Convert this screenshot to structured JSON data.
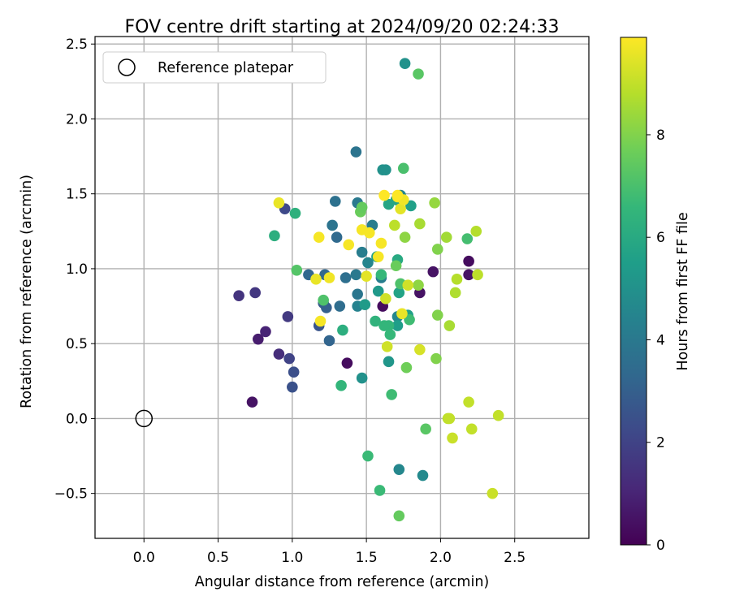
{
  "chart_data": {
    "type": "scatter",
    "title": "FOV centre drift starting at 2024/09/20 02:24:33",
    "xlabel": "Angular distance from reference (arcmin)",
    "ylabel": "Rotation from reference (arcmin)",
    "xlim": [
      -0.33,
      3.0
    ],
    "ylim": [
      -0.8,
      2.55
    ],
    "xticks": [
      0.0,
      0.5,
      1.0,
      1.5,
      2.0,
      2.5
    ],
    "xtick_labels": [
      "0.0",
      "0.5",
      "1.0",
      "1.5",
      "2.0",
      "2.5"
    ],
    "yticks": [
      -0.5,
      0.0,
      0.5,
      1.0,
      1.5,
      2.0,
      2.5
    ],
    "ytick_labels": [
      "−0.5",
      "0.0",
      "0.5",
      "1.0",
      "1.5",
      "2.0",
      "2.5"
    ],
    "grid": true,
    "legend": {
      "placement": "top-left",
      "label": "Reference platepar"
    },
    "reference_point": {
      "x": 0.0,
      "y": 0.0,
      "marker": "open-circle"
    },
    "colorbar": {
      "label": "Hours from first FF file",
      "colormap": "viridis",
      "range": [
        0,
        9.9
      ],
      "ticks": [
        0,
        2,
        4,
        6,
        8
      ],
      "tick_labels": [
        "0",
        "2",
        "4",
        "6",
        "8"
      ]
    },
    "colormap_stops": [
      "#440154",
      "#482878",
      "#3e4989",
      "#31688e",
      "#26828e",
      "#1f9e89",
      "#35b779",
      "#6ece58",
      "#b5de2b",
      "#fde725"
    ],
    "points": [
      {
        "x": 0.73,
        "y": 0.11,
        "h": 0.5
      },
      {
        "x": 0.77,
        "y": 0.53,
        "h": 0.8
      },
      {
        "x": 0.82,
        "y": 0.58,
        "h": 1.0
      },
      {
        "x": 0.91,
        "y": 0.43,
        "h": 1.3
      },
      {
        "x": 0.64,
        "y": 0.82,
        "h": 1.5
      },
      {
        "x": 0.75,
        "y": 0.84,
        "h": 1.6
      },
      {
        "x": 0.97,
        "y": 0.68,
        "h": 1.7
      },
      {
        "x": 0.98,
        "y": 0.4,
        "h": 2.0
      },
      {
        "x": 1.01,
        "y": 0.31,
        "h": 2.4
      },
      {
        "x": 1.0,
        "y": 0.21,
        "h": 2.5
      },
      {
        "x": 1.37,
        "y": 0.37,
        "h": 0.3
      },
      {
        "x": 1.61,
        "y": 0.75,
        "h": 0.3
      },
      {
        "x": 1.86,
        "y": 0.84,
        "h": 0.5
      },
      {
        "x": 1.95,
        "y": 0.98,
        "h": 0.5
      },
      {
        "x": 2.19,
        "y": 0.96,
        "h": 0.5
      },
      {
        "x": 2.19,
        "y": 1.05,
        "h": 0.3
      },
      {
        "x": 0.95,
        "y": 1.4,
        "h": 2.2
      },
      {
        "x": 1.18,
        "y": 0.62,
        "h": 2.6
      },
      {
        "x": 1.21,
        "y": 0.77,
        "h": 2.8
      },
      {
        "x": 1.23,
        "y": 0.74,
        "h": 3.0
      },
      {
        "x": 1.25,
        "y": 0.52,
        "h": 3.2
      },
      {
        "x": 1.11,
        "y": 0.96,
        "h": 3.3
      },
      {
        "x": 1.22,
        "y": 0.96,
        "h": 3.3
      },
      {
        "x": 1.3,
        "y": 1.21,
        "h": 3.4
      },
      {
        "x": 1.32,
        "y": 0.75,
        "h": 3.5
      },
      {
        "x": 1.36,
        "y": 0.94,
        "h": 3.6
      },
      {
        "x": 1.29,
        "y": 1.45,
        "h": 3.7
      },
      {
        "x": 1.27,
        "y": 1.29,
        "h": 3.8
      },
      {
        "x": 1.43,
        "y": 1.78,
        "h": 3.8
      },
      {
        "x": 1.44,
        "y": 0.83,
        "h": 3.9
      },
      {
        "x": 1.43,
        "y": 0.96,
        "h": 4.0
      },
      {
        "x": 1.44,
        "y": 1.44,
        "h": 4.0
      },
      {
        "x": 1.47,
        "y": 1.11,
        "h": 4.2
      },
      {
        "x": 1.54,
        "y": 1.29,
        "h": 4.2
      },
      {
        "x": 1.6,
        "y": 0.94,
        "h": 4.2
      },
      {
        "x": 1.44,
        "y": 0.75,
        "h": 4.4
      },
      {
        "x": 1.51,
        "y": 1.04,
        "h": 4.5
      },
      {
        "x": 1.71,
        "y": 0.68,
        "h": 4.6
      },
      {
        "x": 1.73,
        "y": 1.49,
        "h": 4.5
      },
      {
        "x": 1.72,
        "y": -0.34,
        "h": 4.6
      },
      {
        "x": 1.88,
        "y": -0.38,
        "h": 4.7
      },
      {
        "x": 1.76,
        "y": 2.37,
        "h": 5.0
      },
      {
        "x": 1.61,
        "y": 1.66,
        "h": 5.0
      },
      {
        "x": 1.63,
        "y": 1.66,
        "h": 5.0
      },
      {
        "x": 1.47,
        "y": 0.27,
        "h": 5.0
      },
      {
        "x": 1.65,
        "y": 0.38,
        "h": 5.2
      },
      {
        "x": 1.58,
        "y": 0.85,
        "h": 5.3
      },
      {
        "x": 1.49,
        "y": 0.76,
        "h": 5.4
      },
      {
        "x": 1.57,
        "y": 1.08,
        "h": 5.5
      },
      {
        "x": 1.71,
        "y": 0.62,
        "h": 5.5
      },
      {
        "x": 1.78,
        "y": 0.69,
        "h": 5.6
      },
      {
        "x": 1.8,
        "y": 1.42,
        "h": 5.6
      },
      {
        "x": 1.72,
        "y": 0.84,
        "h": 5.7
      },
      {
        "x": 1.65,
        "y": 1.43,
        "h": 5.8
      },
      {
        "x": 1.7,
        "y": 1.46,
        "h": 5.8
      },
      {
        "x": 1.71,
        "y": 1.06,
        "h": 6.0
      },
      {
        "x": 0.88,
        "y": 1.22,
        "h": 6.2
      },
      {
        "x": 1.02,
        "y": 1.37,
        "h": 6.3
      },
      {
        "x": 1.34,
        "y": 0.59,
        "h": 6.2
      },
      {
        "x": 1.33,
        "y": 0.22,
        "h": 6.5
      },
      {
        "x": 1.56,
        "y": 0.65,
        "h": 6.4
      },
      {
        "x": 1.65,
        "y": 0.62,
        "h": 6.5
      },
      {
        "x": 1.62,
        "y": 0.62,
        "h": 6.5
      },
      {
        "x": 1.66,
        "y": 0.56,
        "h": 6.6
      },
      {
        "x": 1.6,
        "y": 0.96,
        "h": 6.6
      },
      {
        "x": 1.59,
        "y": -0.48,
        "h": 6.7
      },
      {
        "x": 1.51,
        "y": -0.25,
        "h": 6.7
      },
      {
        "x": 1.67,
        "y": 0.16,
        "h": 6.8
      },
      {
        "x": 1.79,
        "y": 0.66,
        "h": 6.8
      },
      {
        "x": 2.18,
        "y": 1.2,
        "h": 6.9
      },
      {
        "x": 1.75,
        "y": 1.67,
        "h": 7.0
      },
      {
        "x": 1.73,
        "y": 0.9,
        "h": 7.1
      },
      {
        "x": 1.21,
        "y": 0.79,
        "h": 7.1
      },
      {
        "x": 1.03,
        "y": 0.99,
        "h": 7.2
      },
      {
        "x": 1.85,
        "y": 2.3,
        "h": 7.3
      },
      {
        "x": 1.9,
        "y": -0.07,
        "h": 7.3
      },
      {
        "x": 1.72,
        "y": -0.65,
        "h": 7.5
      },
      {
        "x": 1.46,
        "y": 1.38,
        "h": 7.6
      },
      {
        "x": 1.47,
        "y": 1.41,
        "h": 7.5
      },
      {
        "x": 1.7,
        "y": 1.02,
        "h": 7.6
      },
      {
        "x": 1.77,
        "y": 0.34,
        "h": 7.7
      },
      {
        "x": 1.97,
        "y": 0.4,
        "h": 8.0
      },
      {
        "x": 1.98,
        "y": 0.69,
        "h": 8.0
      },
      {
        "x": 1.98,
        "y": 1.13,
        "h": 8.0
      },
      {
        "x": 1.76,
        "y": 1.21,
        "h": 8.2
      },
      {
        "x": 1.85,
        "y": 0.89,
        "h": 8.2
      },
      {
        "x": 1.96,
        "y": 1.44,
        "h": 8.3
      },
      {
        "x": 2.04,
        "y": 1.21,
        "h": 8.5
      },
      {
        "x": 2.06,
        "y": 0.62,
        "h": 8.6
      },
      {
        "x": 1.86,
        "y": 1.3,
        "h": 8.6
      },
      {
        "x": 2.1,
        "y": 0.84,
        "h": 8.7
      },
      {
        "x": 2.11,
        "y": 0.93,
        "h": 8.8
      },
      {
        "x": 2.24,
        "y": 1.25,
        "h": 8.8
      },
      {
        "x": 2.25,
        "y": 0.96,
        "h": 8.9
      },
      {
        "x": 2.19,
        "y": 0.11,
        "h": 9.0
      },
      {
        "x": 2.05,
        "y": 0.0,
        "h": 8.9
      },
      {
        "x": 2.06,
        "y": 0.0,
        "h": 9.0
      },
      {
        "x": 2.21,
        "y": -0.07,
        "h": 9.0
      },
      {
        "x": 2.08,
        "y": -0.13,
        "h": 9.1
      },
      {
        "x": 2.35,
        "y": -0.5,
        "h": 9.1
      },
      {
        "x": 2.39,
        "y": 0.02,
        "h": 9.0
      },
      {
        "x": 1.69,
        "y": 1.29,
        "h": 8.9
      },
      {
        "x": 1.78,
        "y": 0.89,
        "h": 9.2
      },
      {
        "x": 1.63,
        "y": 0.8,
        "h": 9.2
      },
      {
        "x": 1.64,
        "y": 0.48,
        "h": 9.2
      },
      {
        "x": 1.86,
        "y": 0.46,
        "h": 9.3
      },
      {
        "x": 1.5,
        "y": 0.95,
        "h": 9.5
      },
      {
        "x": 1.74,
        "y": 0.7,
        "h": 9.6
      },
      {
        "x": 1.73,
        "y": 1.4,
        "h": 9.5
      },
      {
        "x": 1.16,
        "y": 0.93,
        "h": 9.6
      },
      {
        "x": 1.25,
        "y": 0.94,
        "h": 9.7
      },
      {
        "x": 1.18,
        "y": 1.21,
        "h": 9.8
      },
      {
        "x": 1.38,
        "y": 1.16,
        "h": 9.8
      },
      {
        "x": 1.19,
        "y": 0.65,
        "h": 9.8
      },
      {
        "x": 0.91,
        "y": 1.44,
        "h": 9.6
      },
      {
        "x": 1.47,
        "y": 1.26,
        "h": 9.8
      },
      {
        "x": 1.52,
        "y": 1.24,
        "h": 9.8
      },
      {
        "x": 1.58,
        "y": 1.08,
        "h": 9.8
      },
      {
        "x": 1.6,
        "y": 1.17,
        "h": 9.8
      },
      {
        "x": 1.62,
        "y": 1.49,
        "h": 9.9
      },
      {
        "x": 1.71,
        "y": 1.48,
        "h": 9.9
      },
      {
        "x": 1.75,
        "y": 1.46,
        "h": 9.7
      },
      {
        "x": 1.71,
        "y": 1.49,
        "h": 9.9
      }
    ]
  }
}
